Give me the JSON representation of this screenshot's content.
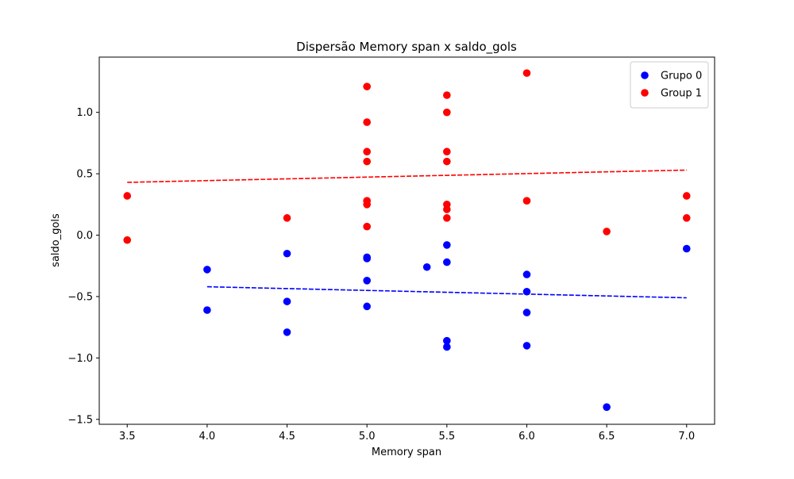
{
  "chart_data": {
    "type": "scatter",
    "title": "Dispersão Memory span x saldo_gols",
    "xlabel": "Memory span",
    "ylabel": "saldo_gols",
    "xlim": [
      3.325,
      7.175
    ],
    "ylim": [
      -1.54,
      1.45
    ],
    "xticks": [
      3.5,
      4.0,
      4.5,
      5.0,
      5.5,
      6.0,
      6.5,
      7.0
    ],
    "xtick_labels": [
      "3.5",
      "4.0",
      "4.5",
      "5.0",
      "5.5",
      "6.0",
      "6.5",
      "7.0"
    ],
    "yticks": [
      -1.5,
      -1.0,
      -0.5,
      0.0,
      0.5,
      1.0
    ],
    "ytick_labels": [
      "−1.5",
      "−1.0",
      "−0.5",
      "0.0",
      "0.5",
      "1.0"
    ],
    "grid": false,
    "legend_position": "top-right",
    "series": [
      {
        "name": "Grupo 0",
        "color": "#0000ff",
        "points": [
          [
            4.0,
            -0.28
          ],
          [
            4.0,
            -0.61
          ],
          [
            4.5,
            -0.15
          ],
          [
            4.5,
            -0.54
          ],
          [
            4.5,
            -0.79
          ],
          [
            5.0,
            -0.18
          ],
          [
            5.0,
            -0.19
          ],
          [
            5.0,
            -0.37
          ],
          [
            5.0,
            -0.58
          ],
          [
            5.375,
            -0.26
          ],
          [
            5.5,
            -0.08
          ],
          [
            5.5,
            -0.22
          ],
          [
            5.5,
            -0.86
          ],
          [
            5.5,
            -0.91
          ],
          [
            6.0,
            -0.32
          ],
          [
            6.0,
            -0.46
          ],
          [
            6.0,
            -0.63
          ],
          [
            6.0,
            -0.9
          ],
          [
            6.5,
            -1.4
          ],
          [
            7.0,
            -0.11
          ]
        ],
        "fit": {
          "x": [
            4.0,
            7.0
          ],
          "y": [
            -0.42,
            -0.51
          ],
          "style": "dashed"
        }
      },
      {
        "name": "Group 1",
        "color": "#ff0000",
        "points": [
          [
            3.5,
            0.32
          ],
          [
            3.5,
            -0.04
          ],
          [
            4.5,
            0.14
          ],
          [
            5.0,
            1.21
          ],
          [
            5.0,
            0.92
          ],
          [
            5.0,
            0.68
          ],
          [
            5.0,
            0.6
          ],
          [
            5.0,
            0.28
          ],
          [
            5.0,
            0.25
          ],
          [
            5.0,
            0.07
          ],
          [
            5.5,
            1.14
          ],
          [
            5.5,
            1.0
          ],
          [
            5.5,
            0.68
          ],
          [
            5.5,
            0.6
          ],
          [
            5.5,
            0.25
          ],
          [
            5.5,
            0.21
          ],
          [
            5.5,
            0.14
          ],
          [
            6.0,
            1.32
          ],
          [
            6.0,
            0.28
          ],
          [
            6.5,
            0.03
          ],
          [
            7.0,
            0.32
          ],
          [
            7.0,
            0.14
          ]
        ],
        "fit": {
          "x": [
            3.5,
            7.0
          ],
          "y": [
            0.43,
            0.53
          ],
          "style": "dashed"
        }
      }
    ]
  }
}
